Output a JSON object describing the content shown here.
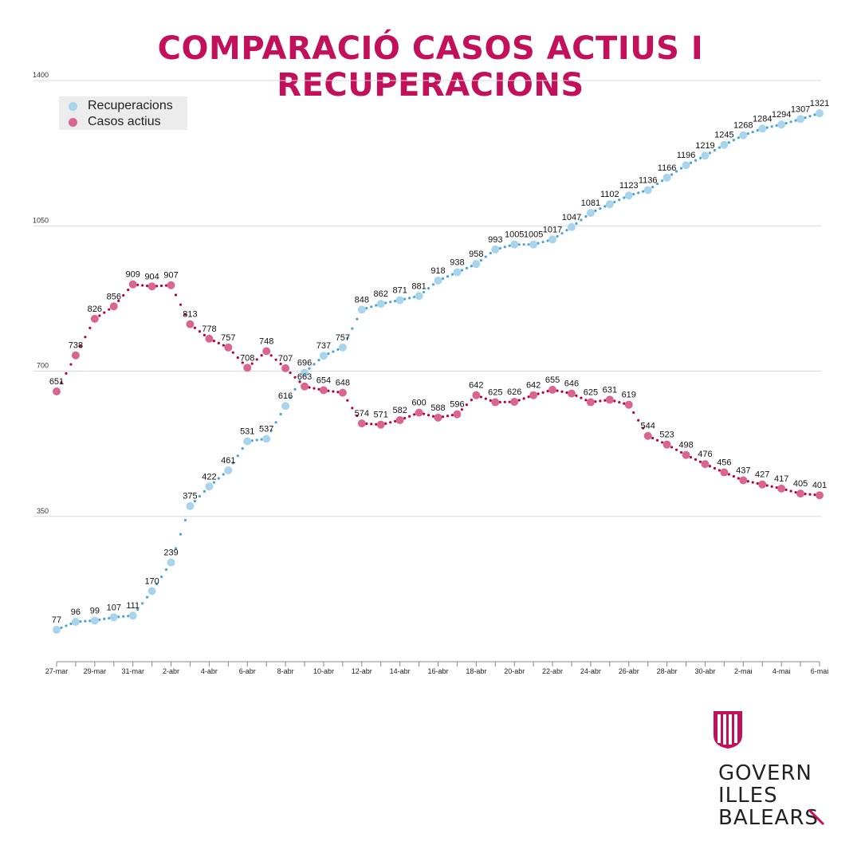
{
  "title": "COMPARACIÓ CASOS ACTIUS I RECUPERACIONS",
  "legend": {
    "recuperacions": "Recuperacions",
    "casos_actius": "Casos actius"
  },
  "logo": {
    "line1": "GOVERN",
    "line2": "ILLES",
    "line3": "BALEARS"
  },
  "colors": {
    "title": "#c2105a",
    "recuperacions_marker": "#a8d4ec",
    "recuperacions_dots": "#4aa3d8",
    "casos_marker": "#d9668f",
    "casos_dots": "#b8003f",
    "grid": "#d8d8d8"
  },
  "chart_data": {
    "type": "line",
    "title": "COMPARACIÓ CASOS ACTIUS I RECUPERACIONS",
    "x_tick_labels": [
      "27-mar",
      "29-mar",
      "31-mar",
      "2-abr",
      "4-abr",
      "6-abr",
      "8-abr",
      "10-abr",
      "12-abr",
      "14-abr",
      "16-abr",
      "18-abr",
      "20-abr",
      "22-abr",
      "24-abr",
      "26-abr",
      "28-abr",
      "30-abr",
      "2-mai",
      "4-mai",
      "6-mai"
    ],
    "y_ticks": [
      350,
      700,
      1050,
      1400
    ],
    "ylim": [
      0,
      1400
    ],
    "grid": true,
    "legend_position": "top-left",
    "series": [
      {
        "name": "Recuperacions",
        "values": [
          77,
          96,
          99,
          107,
          111,
          170,
          239,
          375,
          422,
          461,
          531,
          537,
          616,
          696,
          737,
          757,
          848,
          862,
          871,
          881,
          918,
          938,
          958,
          993,
          1005,
          1005,
          1017,
          1047,
          1081,
          1102,
          1123,
          1136,
          1166,
          1196,
          1219,
          1245,
          1268,
          1284,
          1294,
          1307,
          1321
        ]
      },
      {
        "name": "Casos actius",
        "values": [
          651,
          738,
          826,
          856,
          909,
          904,
          907,
          813,
          778,
          757,
          708,
          748,
          707,
          663,
          654,
          648,
          574,
          571,
          582,
          600,
          588,
          596,
          642,
          625,
          626,
          642,
          655,
          646,
          625,
          631,
          619,
          544,
          523,
          498,
          476,
          456,
          437,
          427,
          417,
          405,
          401
        ]
      }
    ]
  }
}
